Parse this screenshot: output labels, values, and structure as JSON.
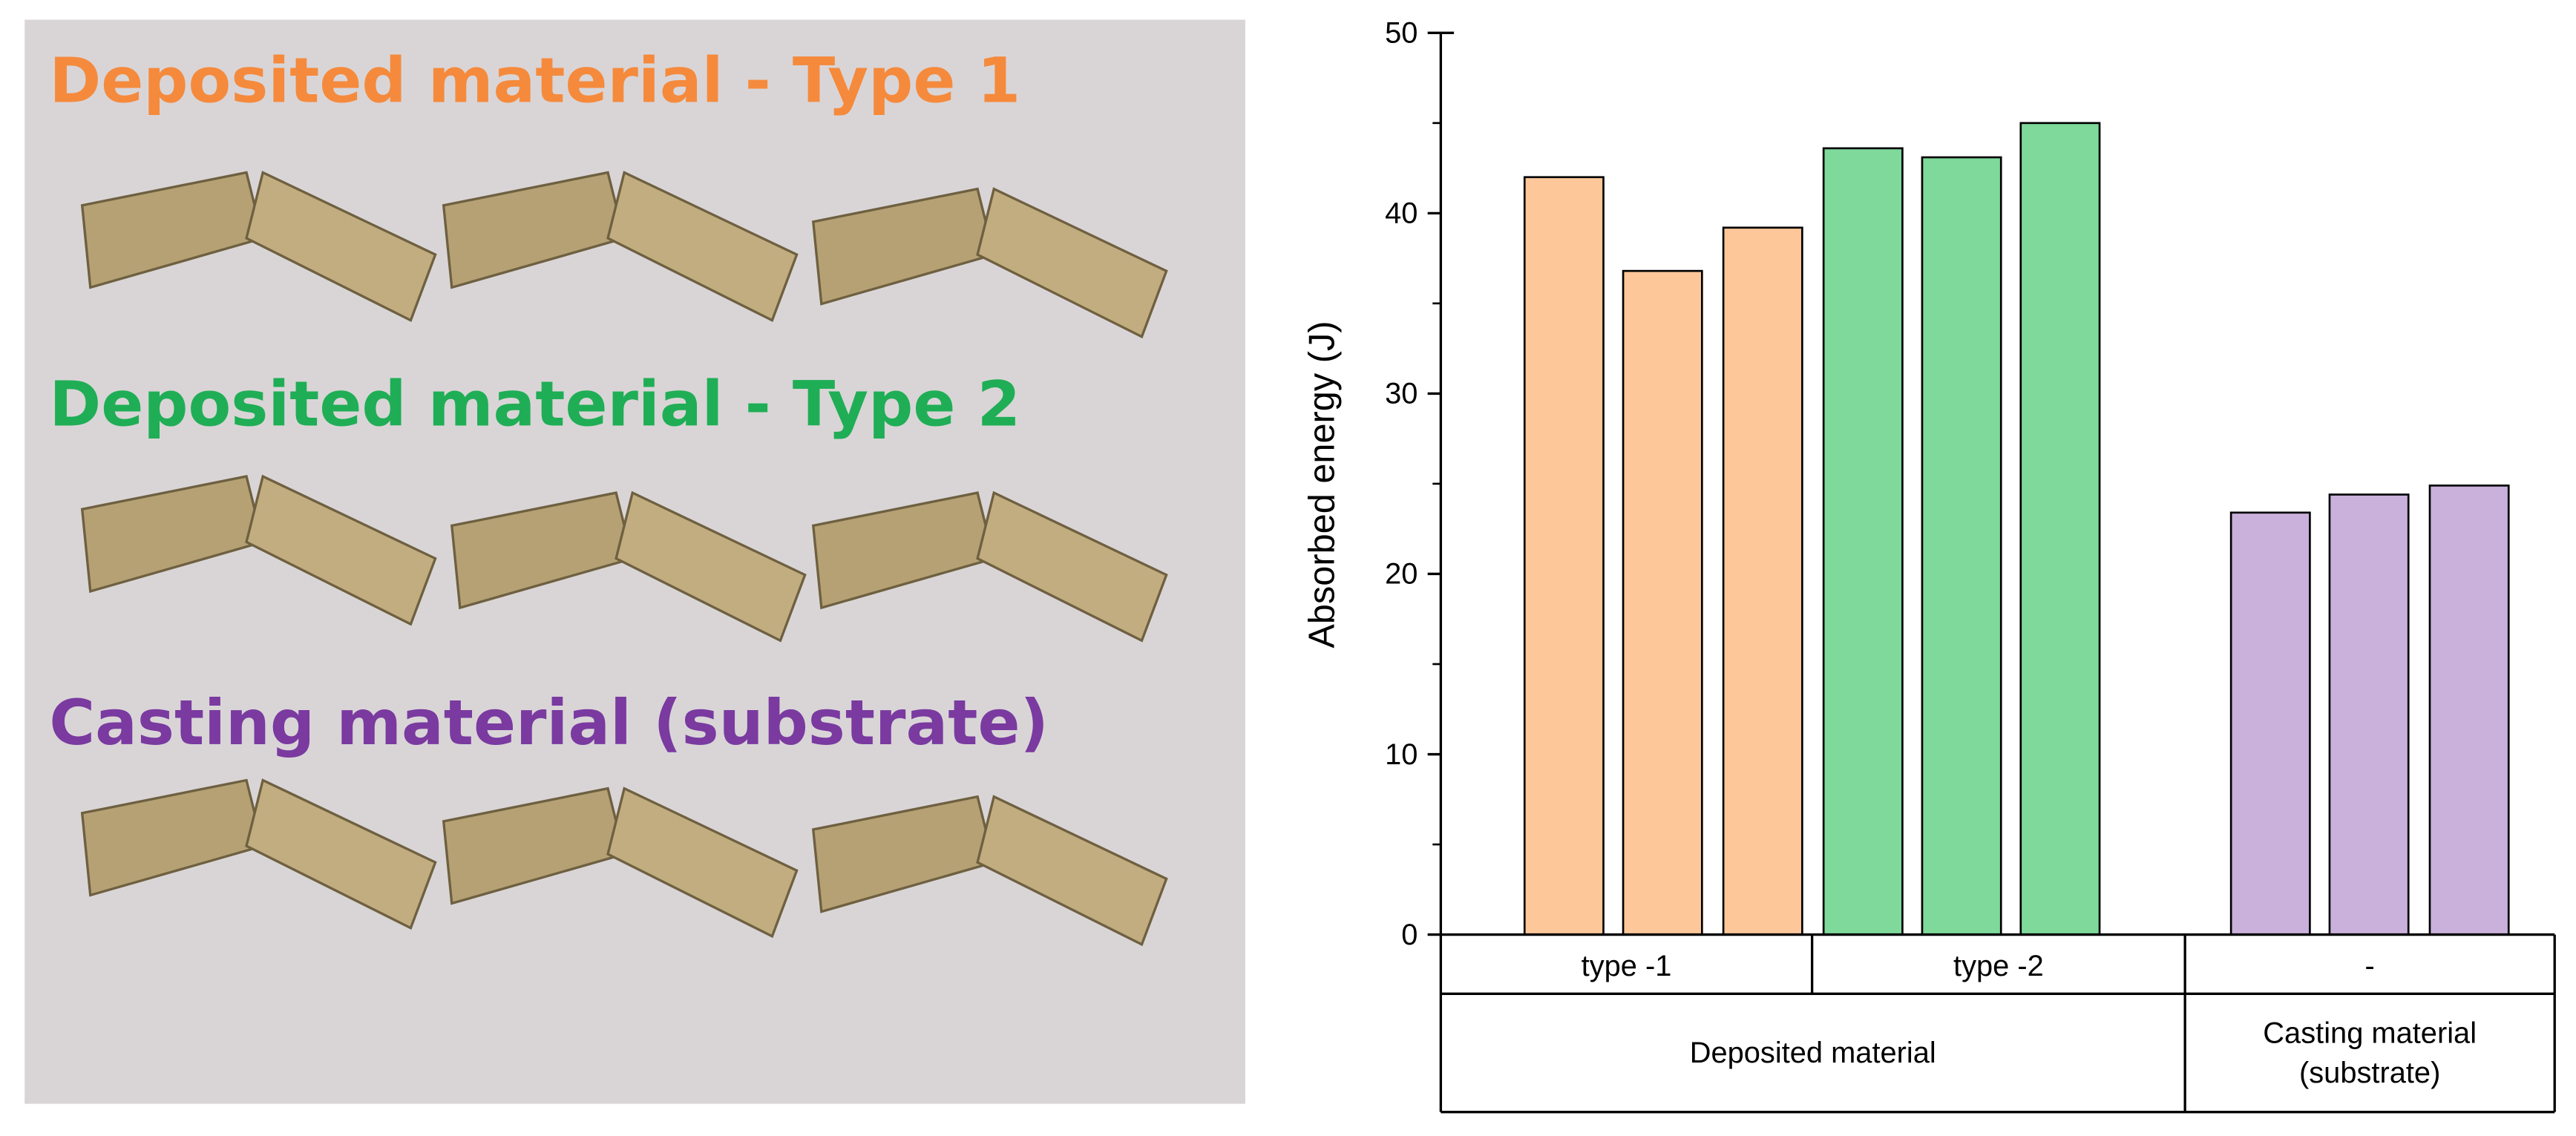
{
  "photo_labels": [
    {
      "text": "Deposited material -  Type 1",
      "color": "#f58a3c"
    },
    {
      "text": "Deposited material -  Type 2",
      "color": "#1fae55"
    },
    {
      "text": "Casting material (substrate)",
      "color": "#7a3aa0"
    }
  ],
  "chart_data": {
    "type": "bar",
    "ylabel": "Absorbed energy (J)",
    "ylim": [
      0,
      50
    ],
    "yticks": [
      0,
      10,
      20,
      30,
      40,
      50
    ],
    "groups": [
      {
        "label": "type -1",
        "color": "#fdc79a",
        "values": [
          42,
          36.8,
          39.2
        ]
      },
      {
        "label": "type -2",
        "color": "#7fd99a",
        "values": [
          43.6,
          43.1,
          45
        ]
      },
      {
        "label": "-",
        "color": "#c9b1dc",
        "values": [
          23.4,
          24.4,
          24.9
        ]
      }
    ],
    "group_labels": [
      [
        "Deposited material"
      ],
      [
        "Casting material",
        "(substrate)"
      ]
    ]
  }
}
